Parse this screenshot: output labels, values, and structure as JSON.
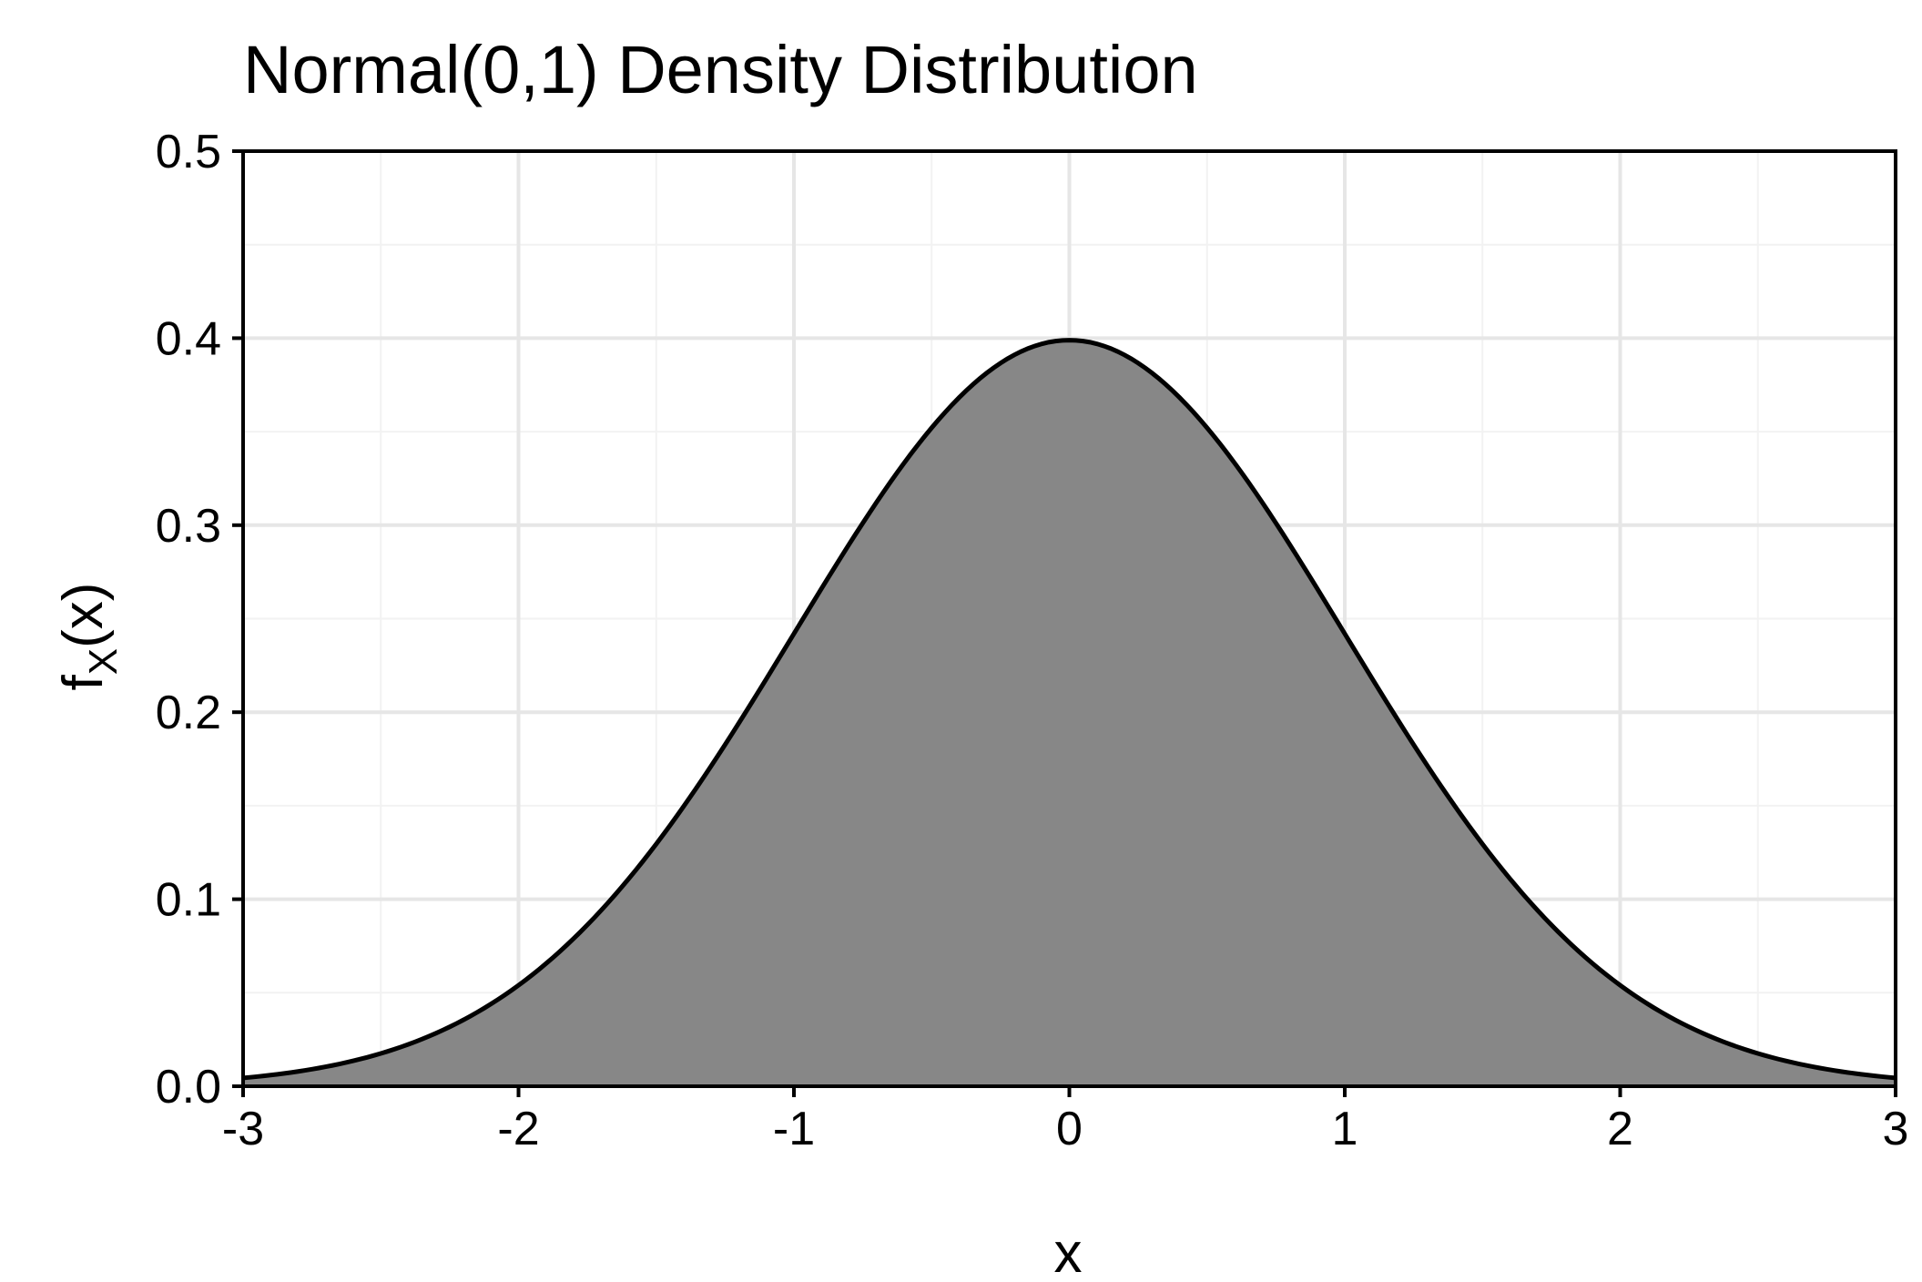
{
  "chart_data": {
    "type": "area",
    "title": "Normal(0,1) Density Distribution",
    "xlabel": "x",
    "ylabel": {
      "main": "f",
      "subscript": "X",
      "suffix": "(x)"
    },
    "xlim": [
      -3,
      3
    ],
    "ylim": [
      0,
      0.5
    ],
    "x_ticks": [
      -3,
      -2,
      -1,
      0,
      1,
      2,
      3
    ],
    "x_tick_labels": [
      "-3",
      "-2",
      "-1",
      "0",
      "1",
      "2",
      "3"
    ],
    "y_ticks": [
      0.0,
      0.1,
      0.2,
      0.3,
      0.4,
      0.5
    ],
    "y_tick_labels": [
      "0.0",
      "0.1",
      "0.2",
      "0.3",
      "0.4",
      "0.5"
    ],
    "grid": true,
    "series": [
      {
        "x": [
          -3.0,
          -2.75,
          -2.5,
          -2.25,
          -2.0,
          -1.75,
          -1.5,
          -1.25,
          -1.0,
          -0.75,
          -0.5,
          -0.25,
          0.0,
          0.25,
          0.5,
          0.75,
          1.0,
          1.25,
          1.5,
          1.75,
          2.0,
          2.25,
          2.5,
          2.75,
          3.0
        ],
        "y": [
          0.0044,
          0.0091,
          0.0175,
          0.0317,
          0.054,
          0.0863,
          0.1295,
          0.1826,
          0.242,
          0.3011,
          0.3521,
          0.3867,
          0.3989,
          0.3867,
          0.3521,
          0.3011,
          0.242,
          0.1826,
          0.1295,
          0.0863,
          0.054,
          0.0317,
          0.0175,
          0.0091,
          0.0044
        ]
      }
    ],
    "colors": {
      "fill": "#858585",
      "line": "#000000",
      "grid_major": "#e6e6e6",
      "grid_minor": "#f2f2f2",
      "panel_border": "#000000"
    }
  }
}
